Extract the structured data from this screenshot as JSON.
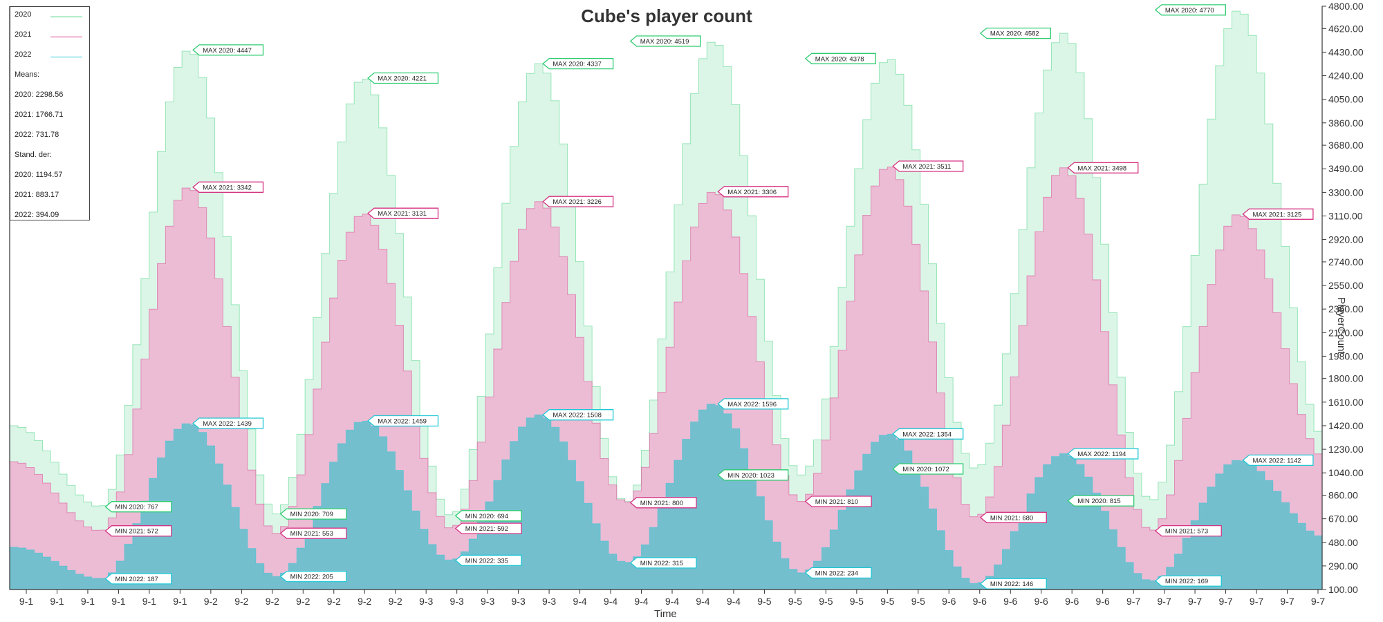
{
  "chart_data": {
    "type": "area",
    "title": "Cube's player count",
    "xlabel": "Time",
    "ylabel": "PlayerCount",
    "ylim": [
      100,
      4770
    ],
    "y_ticks": [
      "100.00",
      "290.00",
      "480.00",
      "670.00",
      "860.00",
      "1040.00",
      "1230.00",
      "1420.00",
      "1610.00",
      "1800.00",
      "1980.00",
      "2170.00",
      "2360.00",
      "2550.00",
      "2740.00",
      "2920.00",
      "3110.00",
      "3300.00",
      "3490.00",
      "3680.00",
      "3860.00",
      "4050.00",
      "4240.00",
      "4430.00",
      "4620.00",
      "4800.00"
    ],
    "x_tick_labels": [
      "9-1",
      "9-1",
      "9-1",
      "9-1",
      "9-1",
      "9-1",
      "9-2",
      "9-2",
      "9-2",
      "9-2",
      "9-2",
      "9-2",
      "9-2",
      "9-3",
      "9-3",
      "9-3",
      "9-3",
      "9-3",
      "9-4",
      "9-4",
      "9-4",
      "9-4",
      "9-4",
      "9-4",
      "9-5",
      "9-5",
      "9-5",
      "9-5",
      "9-5",
      "9-5",
      "9-6",
      "9-6",
      "9-6",
      "9-6",
      "9-6",
      "9-6",
      "9-7",
      "9-7",
      "9-7",
      "9-7",
      "9-7",
      "9-7",
      "9-7"
    ],
    "axis_position": {
      "y": "right",
      "legend": "top-left"
    },
    "grid": false,
    "series": [
      {
        "name": "2020",
        "color": "#2ecc71",
        "fill": "#d5f5e3",
        "peaks": [
          1420,
          767,
          4447,
          709,
          4221,
          694,
          4337,
          800,
          4519,
          1023,
          4378,
          1072,
          4582,
          815,
          4770,
          1300
        ],
        "annotations": [
          {
            "text": "MIN 2020: 767",
            "value": 767
          },
          {
            "text": "MAX 2020: 4447",
            "value": 4447
          },
          {
            "text": "MIN 2020: 709",
            "value": 709
          },
          {
            "text": "MAX 2020: 4221",
            "value": 4221
          },
          {
            "text": "MIN 2020: 694",
            "value": 694
          },
          {
            "text": "MAX 2020: 4337",
            "value": 4337
          },
          {
            "text": "MAX 2020: 4519",
            "value": 4519
          },
          {
            "text": "MIN 2020: 1023",
            "value": 1023
          },
          {
            "text": "MAX 2020: 4378",
            "value": 4378
          },
          {
            "text": "MIN 2020: 1072",
            "value": 1072
          },
          {
            "text": "MAX 2020: 4582",
            "value": 4582
          },
          {
            "text": "MIN 2020: 815",
            "value": 815
          },
          {
            "text": "MAX 2020: 4770",
            "value": 4770
          }
        ]
      },
      {
        "name": "2021",
        "color": "#d63384",
        "fill": "#f2a7cd",
        "peaks": [
          1130,
          572,
          3342,
          553,
          3131,
          592,
          3226,
          800,
          3306,
          810,
          3511,
          680,
          3498,
          573,
          3125,
          1150
        ],
        "annotations": [
          {
            "text": "MIN 2021: 572",
            "value": 572
          },
          {
            "text": "MAX 2021: 3342",
            "value": 3342
          },
          {
            "text": "MIN 2021: 553",
            "value": 553
          },
          {
            "text": "MAX 2021: 3131",
            "value": 3131
          },
          {
            "text": "MIN 2021: 592",
            "value": 592
          },
          {
            "text": "MAX 2021: 3226",
            "value": 3226
          },
          {
            "text": "MIN 2021: 800",
            "value": 800
          },
          {
            "text": "MAX 2021: 3306",
            "value": 3306
          },
          {
            "text": "MIN 2021: 810",
            "value": 810
          },
          {
            "text": "MAX 2021: 3511",
            "value": 3511
          },
          {
            "text": "MIN 2021: 680",
            "value": 680
          },
          {
            "text": "MAX 2021: 3498",
            "value": 3498
          },
          {
            "text": "MIN 2021: 573",
            "value": 573
          },
          {
            "text": "MAX 2021: 3125",
            "value": 3125
          }
        ]
      },
      {
        "name": "2022",
        "color": "#1fc7d4",
        "fill": "#5fc0cc",
        "peaks": [
          440,
          187,
          1439,
          205,
          1459,
          335,
          1508,
          315,
          1596,
          234,
          1354,
          146,
          1194,
          169,
          1142,
          520
        ],
        "annotations": [
          {
            "text": "MIN 2022: 187",
            "value": 187
          },
          {
            "text": "MAX 2022: 1439",
            "value": 1439
          },
          {
            "text": "MIN 2022: 205",
            "value": 205
          },
          {
            "text": "MAX 2022: 1459",
            "value": 1459
          },
          {
            "text": "MIN 2022: 335",
            "value": 335
          },
          {
            "text": "MAX 2022: 1508",
            "value": 1508
          },
          {
            "text": "MIN 2022: 315",
            "value": 315
          },
          {
            "text": "MAX 2022: 1596",
            "value": 1596
          },
          {
            "text": "MIN 2022: 234",
            "value": 234
          },
          {
            "text": "MAX 2022: 1354",
            "value": 1354
          },
          {
            "text": "MIN 2022: 146",
            "value": 146
          },
          {
            "text": "MAX 2022: 1194",
            "value": 1194
          },
          {
            "text": "MIN 2022: 169",
            "value": 169
          },
          {
            "text": "MAX 2022: 1142",
            "value": 1142
          }
        ]
      }
    ],
    "legend": {
      "entries": [
        "2020",
        "2021",
        "2022"
      ],
      "means_label": "Means:",
      "means": [
        "2020: 2298.56",
        "2021: 1766.71",
        "2022: 731.78"
      ],
      "std_label": "Stand. der:",
      "std": [
        "2020: 1194.57",
        "2021: 883.17",
        "2022: 394.09"
      ]
    }
  }
}
